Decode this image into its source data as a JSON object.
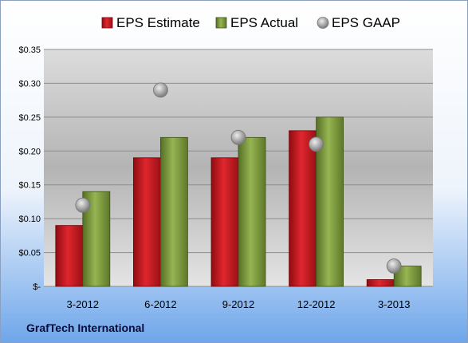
{
  "chart_data": {
    "type": "bar",
    "categories": [
      "3-2012",
      "6-2012",
      "9-2012",
      "12-2012",
      "3-2013"
    ],
    "series": [
      {
        "name": "EPS Estimate",
        "kind": "bar",
        "color": "#c0141c",
        "values": [
          0.09,
          0.19,
          0.19,
          0.23,
          0.01
        ]
      },
      {
        "name": "EPS Actual",
        "kind": "bar",
        "color": "#7a9a3a",
        "values": [
          0.14,
          0.22,
          0.22,
          0.25,
          0.03
        ]
      },
      {
        "name": "EPS GAAP",
        "kind": "scatter",
        "color": "#a6a6a6",
        "values": [
          0.12,
          0.29,
          0.22,
          0.21,
          0.03
        ]
      }
    ],
    "ylim": [
      0,
      0.35
    ],
    "yticks": [
      0,
      0.05,
      0.1,
      0.15,
      0.2,
      0.25,
      0.3,
      0.35
    ],
    "ytick_labels": [
      "$-",
      "$0.05",
      "$0.10",
      "$0.15",
      "$0.20",
      "$0.25",
      "$0.30",
      "$0.35"
    ],
    "legend_position": "top",
    "grid": true,
    "company": "GrafTech International"
  }
}
